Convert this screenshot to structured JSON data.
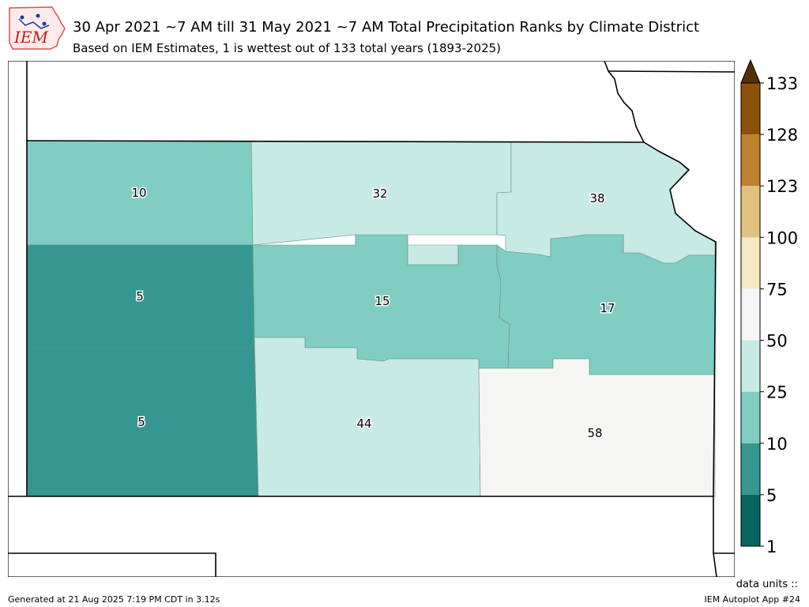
{
  "header": {
    "logo_text": "IEM",
    "title": "30 Apr 2021 ~7 AM till 31 May 2021 ~7 AM Total Precipitation Ranks by Climate District",
    "subtitle": "Based on IEM Estimates, 1 is wettest out of 133 total years (1893-2025)"
  },
  "map": {
    "districts": [
      {
        "id": "nw",
        "rank": "10",
        "color": "#80cdc1"
      },
      {
        "id": "nc",
        "rank": "32",
        "color": "#c7eae5"
      },
      {
        "id": "ne",
        "rank": "38",
        "color": "#c7eae5"
      },
      {
        "id": "wc",
        "rank": "5",
        "color": "#35978f"
      },
      {
        "id": "c",
        "rank": "15",
        "color": "#80cdc1"
      },
      {
        "id": "ec",
        "rank": "17",
        "color": "#80cdc1"
      },
      {
        "id": "sw",
        "rank": "5",
        "color": "#35978f"
      },
      {
        "id": "sc",
        "rank": "44",
        "color": "#c7eae5"
      },
      {
        "id": "se",
        "rank": "58",
        "color": "#f5f5f3"
      }
    ]
  },
  "colorbar": {
    "ticks": [
      "1",
      "5",
      "10",
      "25",
      "50",
      "75",
      "100",
      "123",
      "128",
      "133"
    ],
    "colors": [
      "#01665e",
      "#35978f",
      "#80cdc1",
      "#c7eae5",
      "#f5f5f5",
      "#f6e8c3",
      "#dfc27d",
      "#bf812d",
      "#8c510a"
    ],
    "extend_color": "#543005"
  },
  "footer": {
    "units": "data units ::",
    "generated": "Generated at 21 Aug 2025 7:19 PM CDT in 3.12s",
    "app": "IEM Autoplot App #24"
  }
}
